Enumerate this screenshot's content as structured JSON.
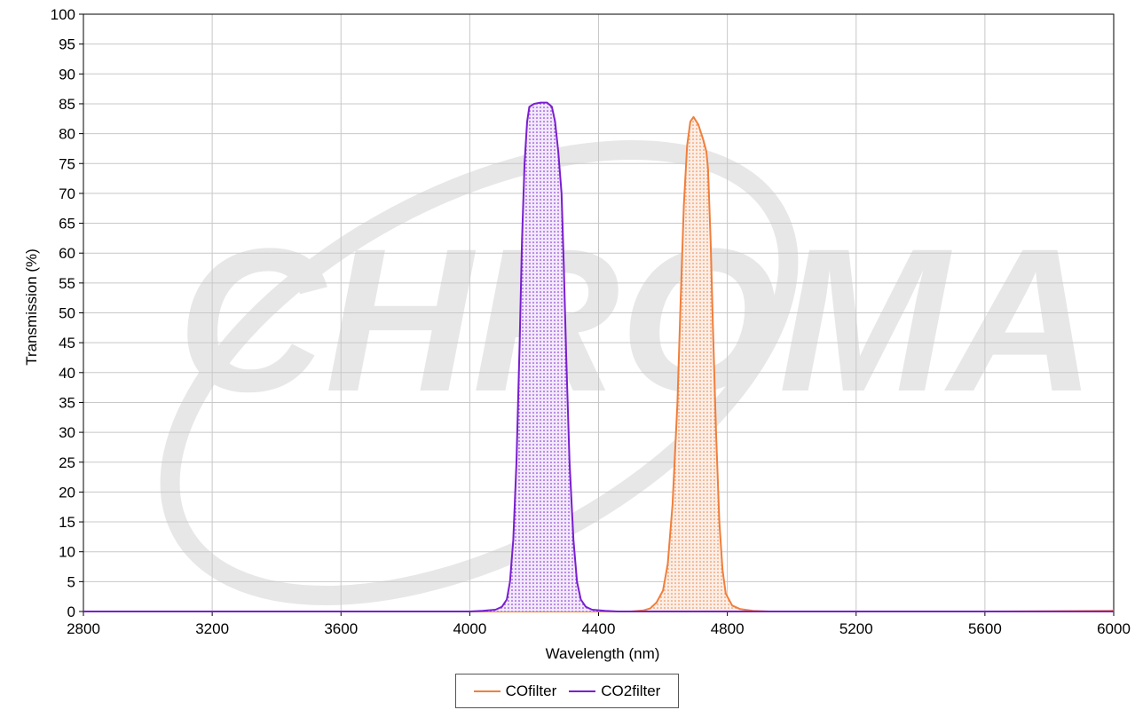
{
  "chart_data": {
    "type": "area",
    "xlabel": "Wavelength (nm)",
    "ylabel": "Transmission (%)",
    "xlim": [
      2800,
      6000
    ],
    "ylim": [
      0,
      100
    ],
    "x_ticks": [
      2800,
      3200,
      3600,
      4000,
      4400,
      4800,
      5200,
      5600,
      6000
    ],
    "y_ticks": [
      0,
      5,
      10,
      15,
      20,
      25,
      30,
      35,
      40,
      45,
      50,
      55,
      60,
      65,
      70,
      75,
      80,
      85,
      90,
      95,
      100
    ],
    "grid": true,
    "legend_position": "bottom",
    "watermark": "CHROMA",
    "series": [
      {
        "name": "COfilter",
        "color": "#f07f3c",
        "points": [
          [
            2800,
            0
          ],
          [
            4450,
            0
          ],
          [
            4500,
            0
          ],
          [
            4540,
            0.2
          ],
          [
            4560,
            0.5
          ],
          [
            4580,
            1.5
          ],
          [
            4600,
            3.5
          ],
          [
            4615,
            8
          ],
          [
            4630,
            18
          ],
          [
            4645,
            35
          ],
          [
            4655,
            52
          ],
          [
            4665,
            68
          ],
          [
            4675,
            78
          ],
          [
            4685,
            82
          ],
          [
            4695,
            82.8
          ],
          [
            4710,
            81.5
          ],
          [
            4725,
            79
          ],
          [
            4735,
            77
          ],
          [
            4740,
            74
          ],
          [
            4748,
            62
          ],
          [
            4755,
            48
          ],
          [
            4765,
            30
          ],
          [
            4775,
            15
          ],
          [
            4785,
            7
          ],
          [
            4795,
            3
          ],
          [
            4815,
            1
          ],
          [
            4840,
            0.4
          ],
          [
            4880,
            0.1
          ],
          [
            4930,
            0
          ],
          [
            5200,
            0
          ],
          [
            5600,
            0
          ],
          [
            5990,
            0.1
          ],
          [
            6000,
            0.2
          ]
        ]
      },
      {
        "name": "CO2filter",
        "color": "#7a1fcf",
        "points": [
          [
            2800,
            0
          ],
          [
            4000,
            0
          ],
          [
            4040,
            0.1
          ],
          [
            4080,
            0.3
          ],
          [
            4100,
            0.8
          ],
          [
            4115,
            2
          ],
          [
            4125,
            5
          ],
          [
            4135,
            12
          ],
          [
            4145,
            25
          ],
          [
            4155,
            45
          ],
          [
            4162,
            62
          ],
          [
            4170,
            75
          ],
          [
            4178,
            82
          ],
          [
            4185,
            84.5
          ],
          [
            4200,
            85
          ],
          [
            4220,
            85.2
          ],
          [
            4240,
            85.2
          ],
          [
            4255,
            84.5
          ],
          [
            4265,
            82
          ],
          [
            4275,
            77
          ],
          [
            4285,
            70
          ],
          [
            4292,
            58
          ],
          [
            4300,
            42
          ],
          [
            4310,
            25
          ],
          [
            4322,
            12
          ],
          [
            4333,
            5
          ],
          [
            4345,
            2
          ],
          [
            4360,
            0.8
          ],
          [
            4380,
            0.3
          ],
          [
            4420,
            0.1
          ],
          [
            4460,
            0
          ],
          [
            6000,
            0
          ]
        ]
      }
    ]
  }
}
